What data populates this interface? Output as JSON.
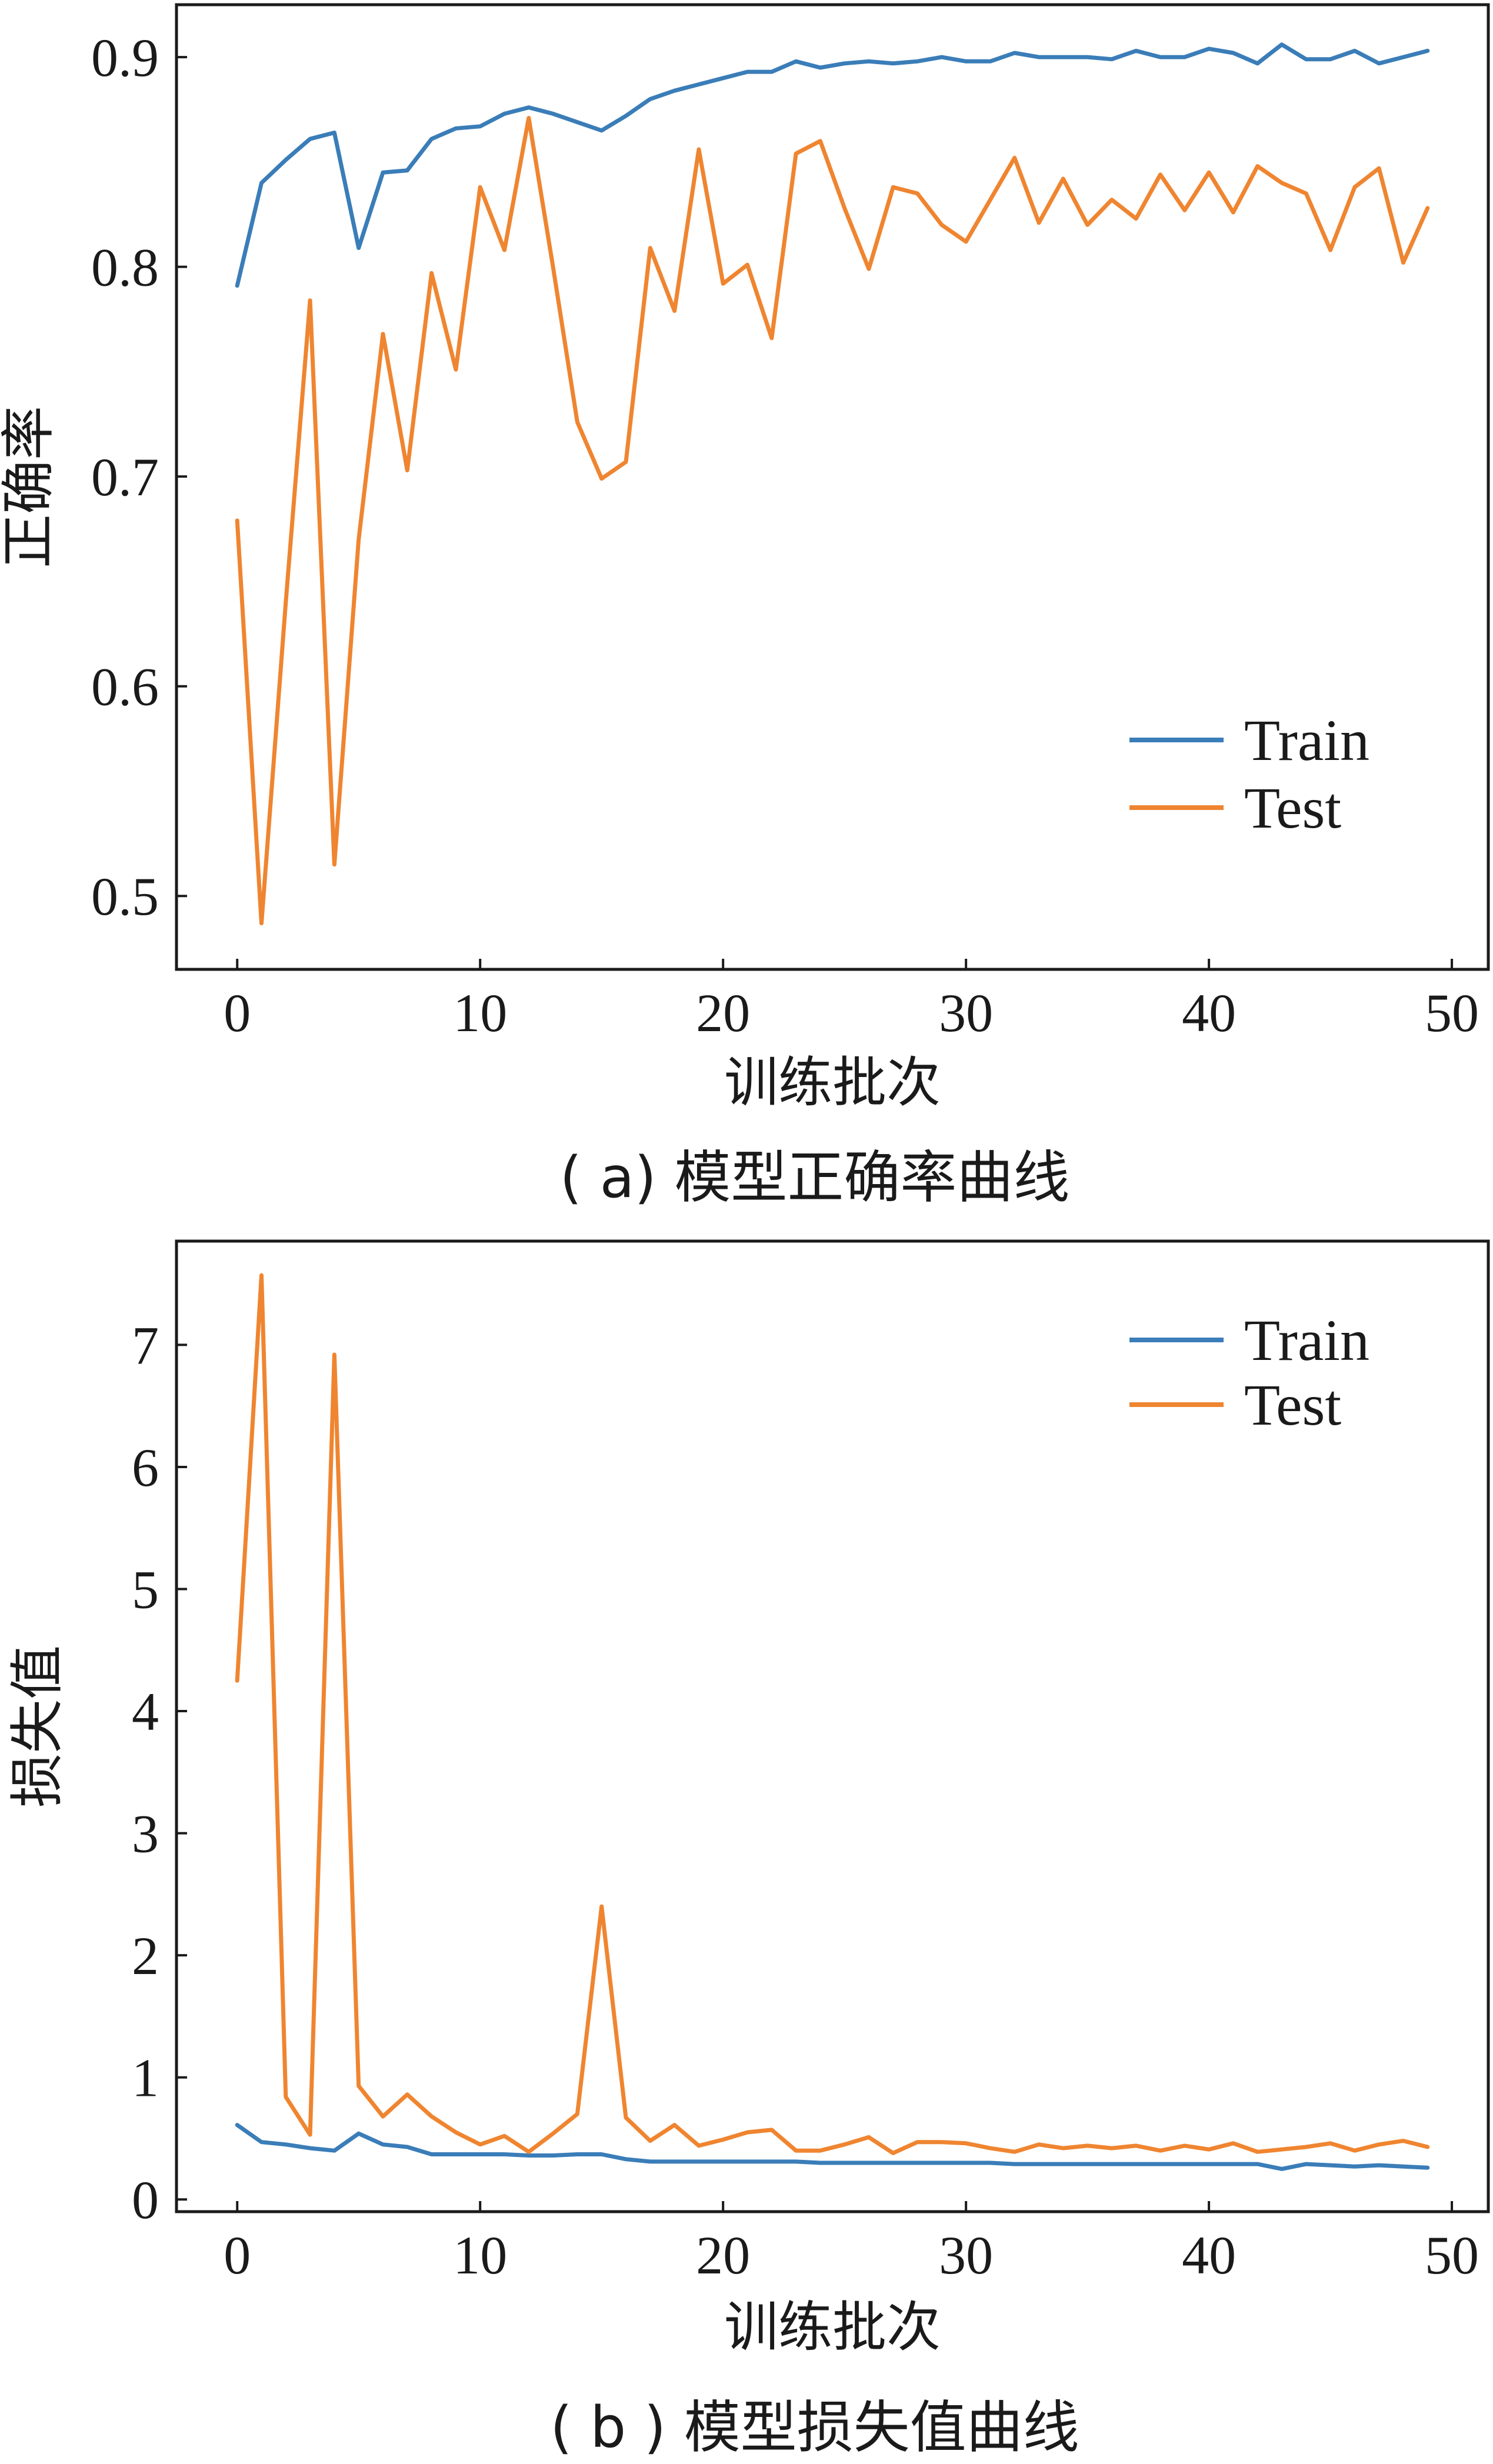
{
  "colors": {
    "train": "#3a7db8",
    "test": "#ef8530",
    "axis": "#1a1a1a"
  },
  "chart_data": [
    {
      "type": "line",
      "id": "accuracy",
      "caption": "( a)  模型正确率曲线",
      "xlabel": "训练批次",
      "ylabel": "正确率",
      "xlim": [
        -2.5,
        51.5
      ],
      "ylim": [
        0.465,
        0.925
      ],
      "xticks": [
        0,
        10,
        20,
        30,
        40,
        50
      ],
      "yticks": [
        0.5,
        0.6,
        0.7,
        0.8,
        0.9
      ],
      "ytick_labels": [
        "0.5",
        "0.6",
        "0.7",
        "0.8",
        "0.9"
      ],
      "legend_position": "lower-right",
      "series": [
        {
          "name": "Train",
          "color": "#3a7db8",
          "x": [
            0,
            1,
            2,
            3,
            4,
            5,
            6,
            7,
            8,
            9,
            10,
            11,
            12,
            13,
            14,
            15,
            16,
            17,
            18,
            19,
            20,
            21,
            22,
            23,
            24,
            25,
            26,
            27,
            28,
            29,
            30,
            31,
            32,
            33,
            34,
            35,
            36,
            37,
            38,
            39,
            40,
            41,
            42,
            43,
            44,
            45,
            46,
            47,
            48,
            49
          ],
          "y": [
            0.791,
            0.84,
            0.851,
            0.861,
            0.864,
            0.809,
            0.845,
            0.846,
            0.861,
            0.866,
            0.867,
            0.873,
            0.876,
            0.873,
            0.869,
            0.865,
            0.872,
            0.88,
            0.884,
            0.887,
            0.89,
            0.893,
            0.893,
            0.898,
            0.895,
            0.897,
            0.898,
            0.897,
            0.898,
            0.9,
            0.898,
            0.898,
            0.902,
            0.9,
            0.9,
            0.9,
            0.899,
            0.903,
            0.9,
            0.9,
            0.904,
            0.902,
            0.897,
            0.906,
            0.899,
            0.899,
            0.903,
            0.897,
            0.9,
            0.903
          ]
        },
        {
          "name": "Test",
          "color": "#ef8530",
          "x": [
            0,
            1,
            2,
            3,
            4,
            5,
            6,
            7,
            8,
            9,
            10,
            11,
            12,
            13,
            14,
            15,
            16,
            17,
            18,
            19,
            20,
            21,
            22,
            23,
            24,
            25,
            26,
            27,
            28,
            29,
            30,
            31,
            32,
            33,
            34,
            35,
            36,
            37,
            38,
            39,
            40,
            41,
            42,
            43,
            44,
            45,
            46,
            47,
            48,
            49
          ],
          "y": [
            0.679,
            0.487,
            0.64,
            0.784,
            0.515,
            0.67,
            0.768,
            0.703,
            0.797,
            0.751,
            0.838,
            0.808,
            0.871,
            0.8,
            0.726,
            0.699,
            0.707,
            0.809,
            0.779,
            0.856,
            0.792,
            0.801,
            0.766,
            0.854,
            0.86,
            0.828,
            0.799,
            0.838,
            0.835,
            0.82,
            0.812,
            0.832,
            0.852,
            0.821,
            0.842,
            0.82,
            0.832,
            0.823,
            0.844,
            0.827,
            0.845,
            0.826,
            0.848,
            0.84,
            0.835,
            0.808,
            0.838,
            0.847,
            0.802,
            0.828
          ]
        }
      ]
    },
    {
      "type": "line",
      "id": "loss",
      "caption": "( b ) 模型损失值曲线",
      "xlabel": "训练批次",
      "ylabel": "损失值",
      "xlim": [
        -2.5,
        51.5
      ],
      "ylim": [
        -0.1,
        7.85
      ],
      "xticks": [
        0,
        10,
        20,
        30,
        40,
        50
      ],
      "yticks": [
        0,
        1,
        2,
        3,
        4,
        5,
        6,
        7
      ],
      "ytick_labels": [
        "0",
        "1",
        "2",
        "3",
        "4",
        "5",
        "6",
        "7"
      ],
      "legend_position": "upper-right",
      "series": [
        {
          "name": "Train",
          "color": "#3a7db8",
          "x": [
            0,
            1,
            2,
            3,
            4,
            5,
            6,
            7,
            8,
            9,
            10,
            11,
            12,
            13,
            14,
            15,
            16,
            17,
            18,
            19,
            20,
            21,
            22,
            23,
            24,
            25,
            26,
            27,
            28,
            29,
            30,
            31,
            32,
            33,
            34,
            35,
            36,
            37,
            38,
            39,
            40,
            41,
            42,
            43,
            44,
            45,
            46,
            47,
            48,
            49
          ],
          "y": [
            0.61,
            0.47,
            0.45,
            0.42,
            0.4,
            0.54,
            0.45,
            0.43,
            0.37,
            0.37,
            0.37,
            0.37,
            0.36,
            0.36,
            0.37,
            0.37,
            0.33,
            0.31,
            0.31,
            0.31,
            0.31,
            0.31,
            0.31,
            0.31,
            0.3,
            0.3,
            0.3,
            0.3,
            0.3,
            0.3,
            0.3,
            0.3,
            0.29,
            0.29,
            0.29,
            0.29,
            0.29,
            0.29,
            0.29,
            0.29,
            0.29,
            0.29,
            0.29,
            0.25,
            0.29,
            0.28,
            0.27,
            0.28,
            0.27,
            0.26
          ]
        },
        {
          "name": "Test",
          "color": "#ef8530",
          "x": [
            0,
            1,
            2,
            3,
            4,
            5,
            6,
            7,
            8,
            9,
            10,
            11,
            12,
            13,
            14,
            15,
            16,
            17,
            18,
            19,
            20,
            21,
            22,
            23,
            24,
            25,
            26,
            27,
            28,
            29,
            30,
            31,
            32,
            33,
            34,
            35,
            36,
            37,
            38,
            39,
            40,
            41,
            42,
            43,
            44,
            45,
            46,
            47,
            48,
            49
          ],
          "y": [
            4.25,
            7.57,
            0.84,
            0.53,
            6.92,
            0.93,
            0.68,
            0.86,
            0.68,
            0.55,
            0.45,
            0.52,
            0.39,
            0.54,
            0.7,
            2.4,
            0.67,
            0.48,
            0.61,
            0.44,
            0.49,
            0.55,
            0.57,
            0.4,
            0.4,
            0.45,
            0.51,
            0.38,
            0.47,
            0.47,
            0.46,
            0.42,
            0.39,
            0.45,
            0.42,
            0.44,
            0.42,
            0.44,
            0.4,
            0.44,
            0.41,
            0.46,
            0.39,
            0.41,
            0.43,
            0.46,
            0.4,
            0.45,
            0.48,
            0.43
          ]
        }
      ]
    }
  ]
}
